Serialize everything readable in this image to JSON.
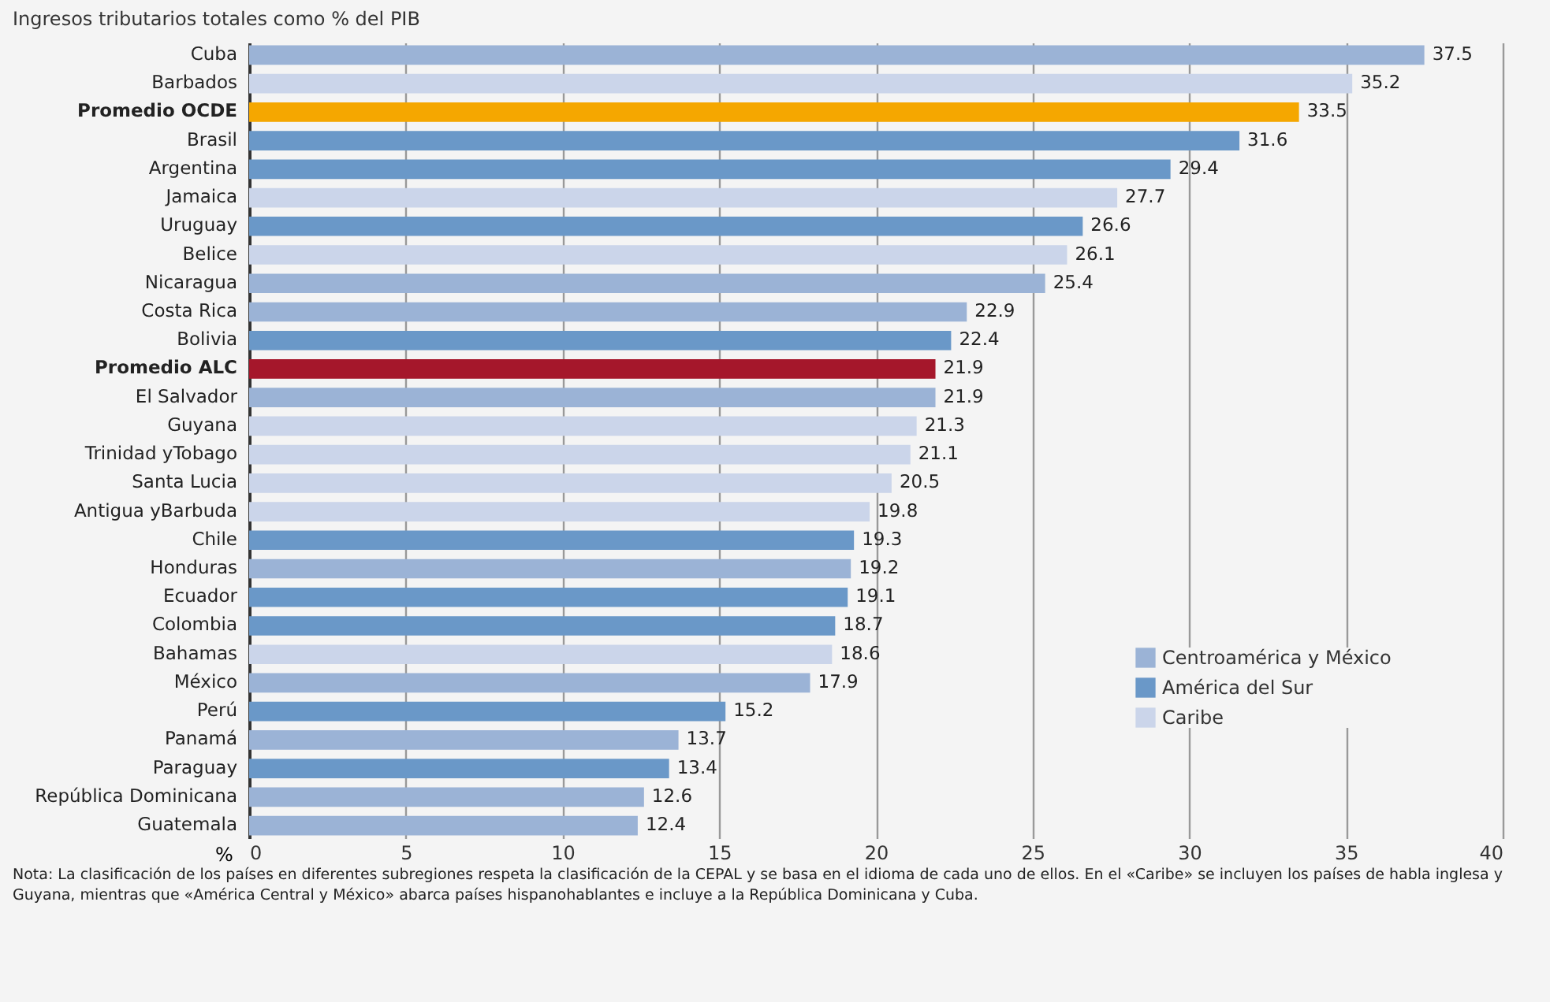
{
  "chart_data": {
    "type": "bar",
    "orientation": "horizontal",
    "title": "Ingresos tributarios totales como % del PIB",
    "xlabel": "%",
    "categories": [
      "Cuba",
      "Barbados",
      "Promedio OCDE",
      "Brasil",
      "Argentina",
      "Jamaica",
      "Uruguay",
      "Belice",
      "Nicaragua",
      "Costa Rica",
      "Bolivia",
      "Promedio ALC",
      "El Salvador",
      "Guyana",
      "Trinidad yTobago",
      "Santa Lucia",
      "Antigua yBarbuda",
      "Chile",
      "Honduras",
      "Ecuador",
      "Colombia",
      "Bahamas",
      "México",
      "Perú",
      "Panamá",
      "Paraguay",
      "República Dominicana",
      "Guatemala"
    ],
    "series": [
      {
        "name": "Centroamérica y México",
        "color": "#9bb3d6",
        "values": [
          37.5,
          null,
          null,
          null,
          null,
          null,
          null,
          null,
          25.4,
          22.9,
          null,
          null,
          21.9,
          null,
          null,
          null,
          null,
          null,
          19.2,
          null,
          null,
          null,
          17.9,
          null,
          13.7,
          null,
          12.6,
          12.4
        ]
      },
      {
        "name": "América del Sur",
        "color": "#6a98c8",
        "values": [
          null,
          null,
          null,
          31.6,
          29.4,
          null,
          26.6,
          null,
          null,
          null,
          22.4,
          null,
          null,
          null,
          null,
          null,
          null,
          19.3,
          null,
          19.1,
          18.7,
          null,
          null,
          15.2,
          null,
          13.4,
          null,
          null
        ]
      },
      {
        "name": "Caribe",
        "color": "#cbd5ea",
        "values": [
          null,
          35.2,
          null,
          null,
          null,
          27.7,
          null,
          26.1,
          null,
          null,
          null,
          null,
          null,
          21.3,
          21.1,
          20.5,
          19.8,
          null,
          null,
          null,
          null,
          18.6,
          null,
          null,
          null,
          null,
          null,
          null
        ]
      },
      {
        "color": "#f5a700",
        "values": [
          null,
          null,
          33.5,
          null,
          null,
          null,
          null,
          null,
          null,
          null,
          null,
          null,
          null,
          null,
          null,
          null,
          null,
          null,
          null,
          null,
          null,
          null,
          null,
          null,
          null,
          null,
          null,
          null
        ]
      },
      {
        "color": "#a5172b",
        "values": [
          null,
          null,
          null,
          null,
          null,
          null,
          null,
          null,
          null,
          null,
          null,
          21.9,
          null,
          null,
          null,
          null,
          null,
          null,
          null,
          null,
          null,
          null,
          null,
          null,
          null,
          null,
          null,
          null
        ]
      }
    ],
    "xlim": [
      0,
      40
    ],
    "xticks": [
      0,
      5,
      10,
      15,
      20,
      25,
      30,
      35,
      40
    ],
    "grid": "x",
    "legend": "bottom right",
    "data_labels": true,
    "annotations": [
      "Nota: La clasificación de los países en diferentes subregiones respeta la clasificación de la CEPAL y se basa en el idioma de cada uno de ellos. En el «Caribe» se incluyen los países de habla inglesa y Guyana, mientras que «América Central y México» abarca países hispanohablantes e incluye a la República Dominicana y Cuba."
    ]
  }
}
